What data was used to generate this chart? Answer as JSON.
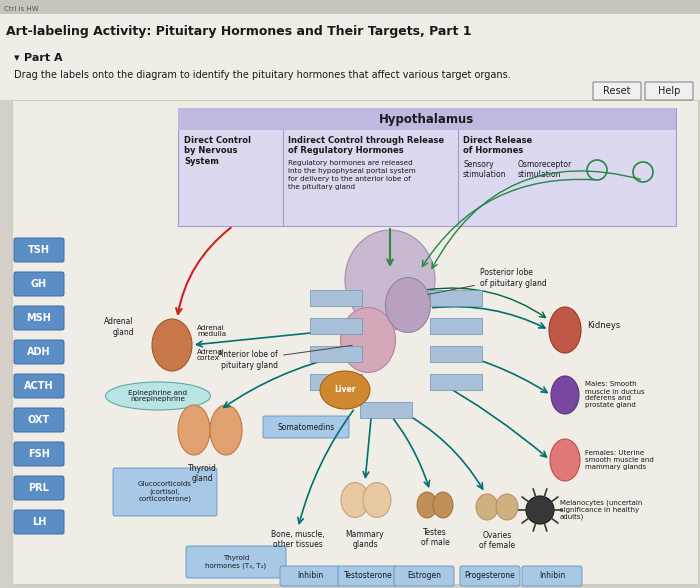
{
  "title": "Art-labeling Activity: Pituitary Hormones and Their Targets, Part 1",
  "subtitle": "Part A",
  "instruction": "Drag the labels onto the diagram to identify the pituitary hormones that affect various target organs.",
  "bg_outer": "#b8b4aa",
  "bg_page": "#e8e4dc",
  "bg_panel": "#ebe7df",
  "hypothalamus_label": "Hypothalamus",
  "col1_header": "Direct Control\nby Nervous\nSystem",
  "col2_header": "Indirect Control through Release\nof Regulatory Hormones",
  "col2_text": "Regulatory hormones are released\ninto the hypophyseal portal system\nfor delivery to the anterior lobe of\nthe pituitary gland",
  "col3_header": "Direct Release\nof Hormones",
  "col3_sub1": "Sensory\nstimulation",
  "col3_sub2": "Osmoreceptor\nstimulation",
  "left_labels": [
    "TSH",
    "GH",
    "MSH",
    "ADH",
    "ACTH",
    "OXT",
    "FSH",
    "PRL",
    "LH"
  ],
  "label_bg": "#5b8ec4",
  "label_text_color": "#ffffff",
  "reset_btn": "Reset",
  "help_btn": "Help",
  "ann_anterior": "Anterior lobe of\npituitary gland",
  "ann_posterior": "Posterior lobe\nof pituitary gland",
  "ann_adrenal_gland": "Adrenal\ngland",
  "ann_adrenal_medulla": "Adrenal\nmedulla",
  "ann_adrenal_cortex": "Adrenal\ncortex",
  "ann_epinephrine": "Epinephrine and\nnorepinephrine",
  "ann_thyroid_gland": "Thyroid\ngland",
  "ann_somatomedins": "Somatomedins",
  "ann_liver": "Liver",
  "ann_glucocorticoids": "Glucocorticoids\n(cortisol,\ncorticosterone)",
  "ann_bone_muscle": "Bone, muscle,\nother tissues",
  "ann_mammary": "Mammary\nglands",
  "ann_thyroid_hormones": "Thyroid\nhormones (T₃, T₄)",
  "ann_testes": "Testes\nof male",
  "ann_ovaries": "Ovaries\nof female",
  "ann_kidneys": "Kidneys",
  "ann_males_smooth": "Males: Smooth\nmuscle in ductus\ndeferens and\nprostate gland",
  "ann_females_uterine": "Females: Uterine\nsmooth muscle and\nmammary glands",
  "ann_melanocytes": "Melanocytes (uncertain\nsignificance in healthy\nadults)",
  "bottom_labels": [
    "Inhibin",
    "Testosterone",
    "Estrogen",
    "Progesterone",
    "Inhibin"
  ],
  "sensory_label": "Sensory\nstimulation",
  "osmoreceptor_label": "Osmoreceptor\nstimulation"
}
